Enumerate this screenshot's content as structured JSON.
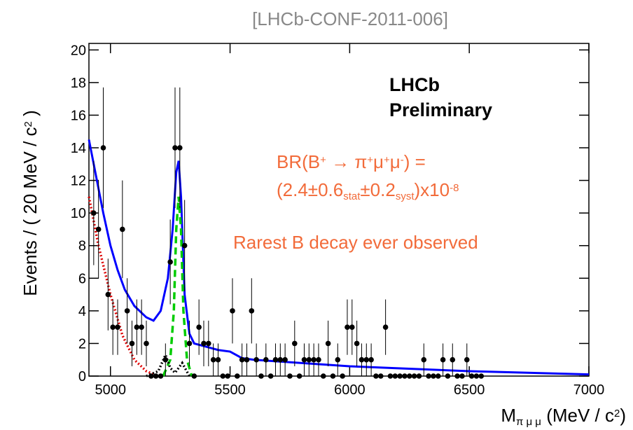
{
  "chart_data": {
    "type": "hep-fit",
    "reference": "[LHCb-CONF-2011-006]",
    "experiment": "LHCb",
    "status": "Preliminary",
    "br_line1": [
      "BR(B",
      "+",
      " → π",
      "+",
      "μ",
      "+",
      "μ",
      "-",
      ")  ="
    ],
    "br_line2": [
      "(2.4±0.6",
      "stat",
      "±0.2",
      "syst",
      ")x10",
      "-8"
    ],
    "note": "Rarest B decay ever observed",
    "y_label": [
      "Events / ( 20 MeV / c",
      "2",
      " )"
    ],
    "x_label": [
      "M",
      "π μ μ",
      " (MeV / c",
      "2",
      ")"
    ],
    "xlim": [
      4910,
      7000
    ],
    "xticks": [
      5000,
      5500,
      6000,
      6500,
      7000
    ],
    "ylim": [
      0,
      20.4
    ],
    "yticks": [
      0,
      2,
      4,
      6,
      8,
      10,
      12,
      14,
      16,
      18,
      20
    ],
    "points": {
      "name": "data",
      "color": "#000000",
      "x": [
        4930,
        4950,
        4970,
        4990,
        5010,
        5030,
        5050,
        5070,
        5090,
        5110,
        5130,
        5150,
        5170,
        5190,
        5210,
        5230,
        5250,
        5270,
        5290,
        5310,
        5330,
        5350,
        5370,
        5390,
        5410,
        5430,
        5450,
        5470,
        5490,
        5510,
        5530,
        5550,
        5570,
        5590,
        5610,
        5630,
        5650,
        5670,
        5690,
        5710,
        5730,
        5750,
        5770,
        5790,
        5810,
        5830,
        5850,
        5870,
        5890,
        5910,
        5930,
        5950,
        5970,
        5990,
        6010,
        6030,
        6050,
        6070,
        6090,
        6110,
        6130,
        6150,
        6170,
        6190,
        6210,
        6230,
        6250,
        6270,
        6290,
        6310,
        6330,
        6350,
        6370,
        6390,
        6410,
        6430,
        6450,
        6470,
        6490,
        6510,
        6530,
        6550
      ],
      "values": [
        10,
        9,
        14,
        5,
        3,
        3,
        9,
        4,
        2,
        3,
        3,
        2,
        0,
        0,
        0,
        1,
        7,
        14,
        14,
        8,
        2,
        0,
        3,
        2,
        2,
        1,
        1,
        0,
        0,
        4,
        0,
        1,
        1,
        4,
        1,
        0,
        1,
        0,
        1,
        1,
        1,
        0,
        2,
        0,
        1,
        1,
        1,
        1,
        0,
        2,
        0,
        1,
        0,
        3,
        3,
        2,
        1,
        1,
        1,
        0,
        0,
        3,
        0,
        0,
        0,
        0,
        0,
        0,
        0,
        1,
        0,
        0,
        0,
        1,
        0,
        1,
        0,
        0,
        1,
        0,
        0,
        0
      ],
      "errors": [
        3.2,
        3,
        3.7,
        2.2,
        1.7,
        1.7,
        3,
        2,
        1.4,
        1.7,
        1.7,
        1.4,
        0,
        0,
        0,
        1,
        2.6,
        3.7,
        3.7,
        2.8,
        1.4,
        0,
        1.7,
        1.4,
        1.4,
        1,
        1,
        0,
        0,
        2,
        0,
        1,
        1,
        2,
        1,
        0,
        1,
        0,
        1,
        1,
        1,
        0,
        1.4,
        0,
        1,
        1,
        1,
        1,
        0,
        1.4,
        0,
        1,
        0,
        1.7,
        1.7,
        1.4,
        1,
        1,
        1,
        0,
        0,
        1.7,
        0,
        0,
        0,
        0,
        0,
        0,
        0,
        1,
        0,
        0,
        0,
        1,
        0,
        1,
        0,
        0,
        1,
        0,
        0,
        0
      ]
    },
    "curves": [
      {
        "name": "total",
        "color": "#0000ff",
        "style": "solid",
        "x": [
          4910,
          4930,
          4950,
          4970,
          5000,
          5030,
          5060,
          5100,
          5150,
          5180,
          5210,
          5240,
          5260,
          5275,
          5285,
          5295,
          5310,
          5330,
          5350,
          5400,
          5450,
          5500,
          5550,
          5600,
          6000,
          6500,
          7000
        ],
        "values": [
          14.5,
          13,
          11.5,
          10,
          8,
          6.5,
          5.3,
          4.3,
          3.6,
          3.4,
          4,
          6,
          9,
          12.5,
          13.2,
          11,
          5,
          2.6,
          2,
          1.8,
          1.6,
          1.5,
          1.1,
          1,
          0.6,
          0.3,
          0.1
        ]
      },
      {
        "name": "signal",
        "color": "#00cc00",
        "style": "dashed",
        "x": [
          5220,
          5250,
          5265,
          5275,
          5285,
          5295,
          5305,
          5320,
          5340
        ],
        "values": [
          0,
          1,
          4,
          9,
          11,
          9,
          4,
          1,
          0
        ]
      },
      {
        "name": "background",
        "color": "#dd0000",
        "style": "dotted",
        "x": [
          4910,
          4950,
          5000,
          5050,
          5100,
          5150,
          5200
        ],
        "values": [
          11,
          8,
          5,
          2.5,
          1,
          0.3,
          0
        ]
      },
      {
        "name": "misid",
        "color": "#000000",
        "style": "dotted",
        "x": [
          5150,
          5200,
          5230,
          5250,
          5270,
          5300,
          5330
        ],
        "values": [
          0,
          0.3,
          1.3,
          0.5,
          0.2,
          0.8,
          0
        ]
      }
    ]
  }
}
